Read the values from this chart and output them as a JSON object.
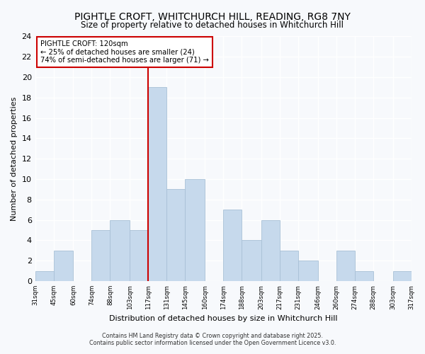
{
  "title": "PIGHTLE CROFT, WHITCHURCH HILL, READING, RG8 7NY",
  "subtitle": "Size of property relative to detached houses in Whitchurch Hill",
  "xlabel": "Distribution of detached houses by size in Whitchurch Hill",
  "ylabel": "Number of detached properties",
  "bin_edges": [
    31,
    45,
    60,
    74,
    88,
    103,
    117,
    131,
    145,
    160,
    174,
    188,
    203,
    217,
    231,
    246,
    260,
    274,
    288,
    303,
    317
  ],
  "bar_heights": [
    1,
    3,
    0,
    5,
    6,
    5,
    19,
    9,
    10,
    0,
    7,
    4,
    6,
    3,
    2,
    0,
    3,
    1,
    0,
    1
  ],
  "bar_color": "#c6d9ec",
  "bar_edge_color": "#a8c0d6",
  "vline_x": 117,
  "vline_color": "#cc0000",
  "annotation_title": "PIGHTLE CROFT: 120sqm",
  "annotation_line1": "← 25% of detached houses are smaller (24)",
  "annotation_line2": "74% of semi-detached houses are larger (71) →",
  "ylim": [
    0,
    24
  ],
  "yticks": [
    0,
    2,
    4,
    6,
    8,
    10,
    12,
    14,
    16,
    18,
    20,
    22,
    24
  ],
  "background_color": "#f7f9fc",
  "plot_bg_color": "#f7f9fc",
  "grid_color": "#ffffff",
  "footer_line1": "Contains HM Land Registry data © Crown copyright and database right 2025.",
  "footer_line2": "Contains public sector information licensed under the Open Government Licence v3.0."
}
